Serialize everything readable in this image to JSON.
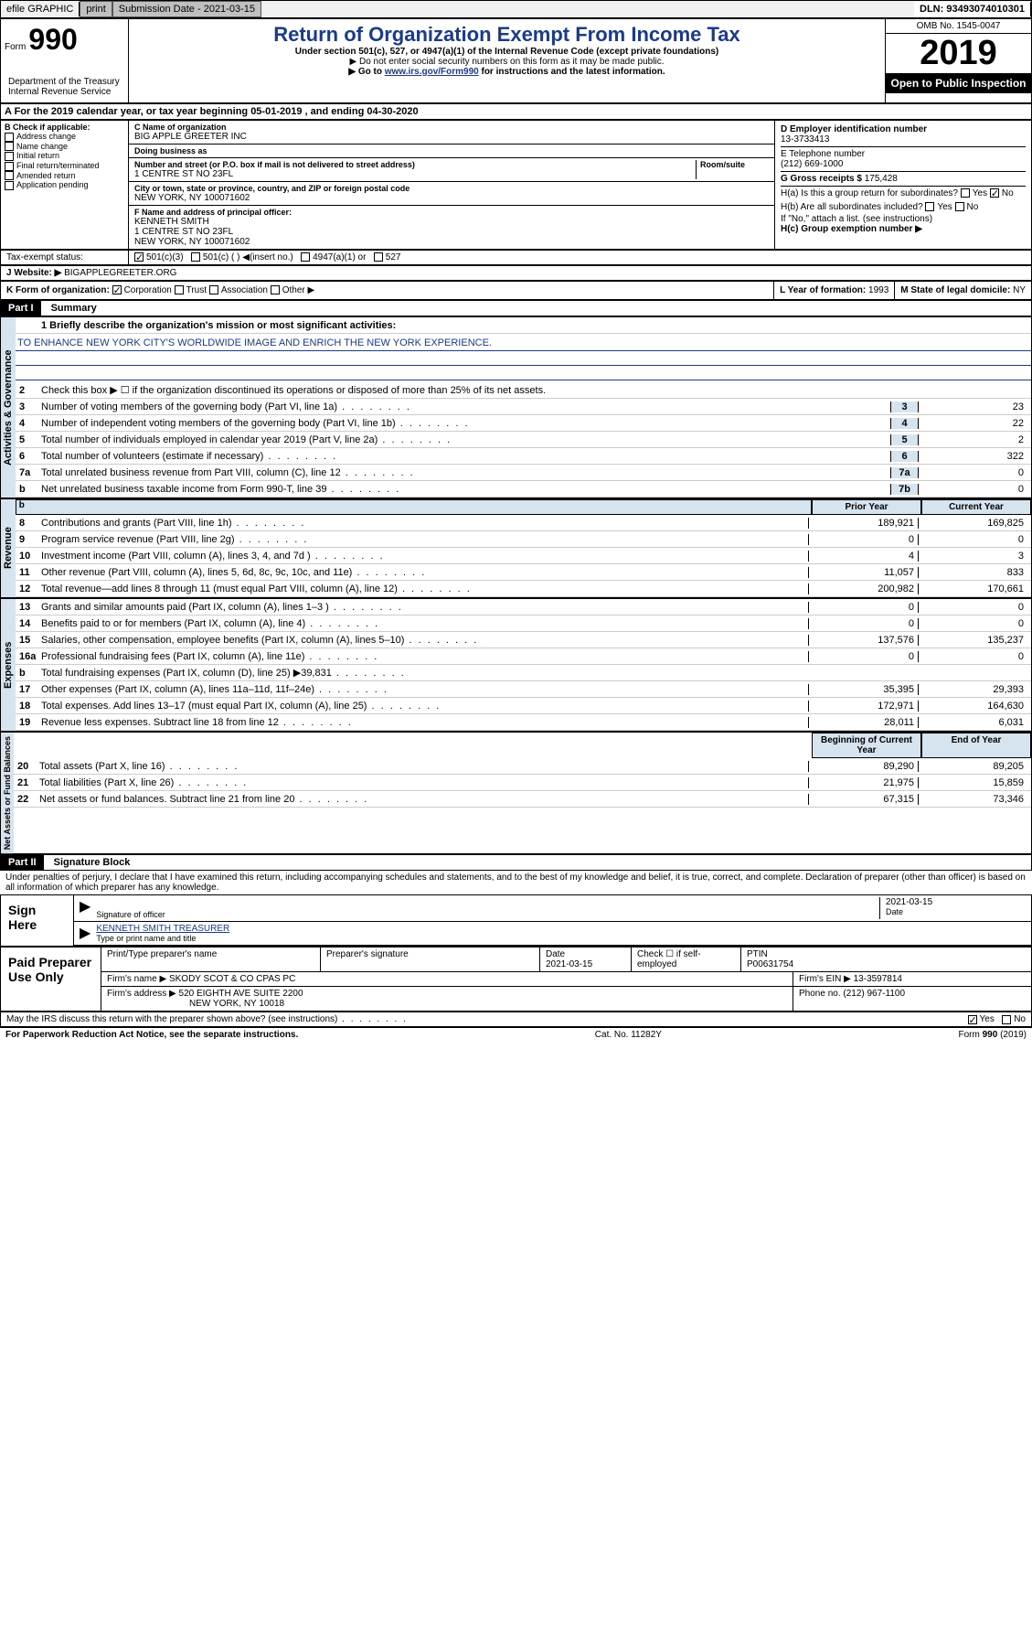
{
  "topbar": {
    "efile": "efile GRAPHIC",
    "print": "print",
    "subdate_label": "Submission Date - ",
    "subdate": "2021-03-15",
    "dln": "DLN: 93493074010301"
  },
  "header": {
    "form_label": "Form",
    "form_num": "990",
    "title": "Return of Organization Exempt From Income Tax",
    "subtitle": "Under section 501(c), 527, or 4947(a)(1) of the Internal Revenue Code (except private foundations)",
    "note1": "▶ Do not enter social security numbers on this form as it may be made public.",
    "note2_pre": "▶ Go to ",
    "note2_link": "www.irs.gov/Form990",
    "note2_post": " for instructions and the latest information.",
    "omb": "OMB No. 1545-0047",
    "year": "2019",
    "open": "Open to Public Inspection",
    "dept": "Department of the Treasury Internal Revenue Service"
  },
  "sectionA": {
    "text": "A For the 2019 calendar year, or tax year beginning 05-01-2019   , and ending 04-30-2020"
  },
  "colB": {
    "label": "B Check if applicable:",
    "items": [
      "Address change",
      "Name change",
      "Initial return",
      "Final return/terminated",
      "Amended return",
      "Application pending"
    ]
  },
  "colC": {
    "name_label": "C Name of organization",
    "name": "BIG APPLE GREETER INC",
    "dba_label": "Doing business as",
    "dba": "",
    "addr_label": "Number and street (or P.O. box if mail is not delivered to street address)",
    "addr": "1 CENTRE ST NO 23FL",
    "room_label": "Room/suite",
    "city_label": "City or town, state or province, country, and ZIP or foreign postal code",
    "city": "NEW YORK, NY  100071602",
    "officer_label": "F Name and address of principal officer:",
    "officer_name": "KENNETH SMITH",
    "officer_addr1": "1 CENTRE ST NO 23FL",
    "officer_addr2": "NEW YORK, NY 100071602"
  },
  "colD": {
    "ein_label": "D Employer identification number",
    "ein": "13-3733413",
    "phone_label": "E Telephone number",
    "phone": "(212) 669-1000",
    "gross_label": "G Gross receipts $ ",
    "gross": "175,428",
    "ha_label": "H(a)  Is this a group return for subordinates?",
    "hb_label": "H(b)  Are all subordinates included?",
    "h_note": "If \"No,\" attach a list. (see instructions)",
    "hc_label": "H(c)  Group exemption number ▶"
  },
  "taxStatus": {
    "label": "Tax-exempt status:",
    "opt1": "501(c)(3)",
    "opt2": "501(c) (  ) ◀(insert no.)",
    "opt3": "4947(a)(1) or",
    "opt4": "527"
  },
  "website": {
    "label": "J   Website: ▶",
    "value": "BIGAPPLEGREETER.ORG"
  },
  "rowK": {
    "k": "K Form of organization:",
    "corp": "Corporation",
    "trust": "Trust",
    "assoc": "Association",
    "other": "Other ▶",
    "l": "L Year of formation: ",
    "l_val": "1993",
    "m": "M State of legal domicile: ",
    "m_val": "NY"
  },
  "partI": {
    "header": "Part I",
    "title": "Summary"
  },
  "governance": {
    "label": "Activities & Governance",
    "line1_label": "1  Briefly describe the organization's mission or most significant activities:",
    "mission": "TO ENHANCE NEW YORK CITY'S WORLDWIDE IMAGE AND ENRICH THE NEW YORK EXPERIENCE.",
    "line2": "Check this box ▶ ☐  if the organization discontinued its operations or disposed of more than 25% of its net assets.",
    "lines": [
      {
        "n": "3",
        "d": "Number of voting members of the governing body (Part VI, line 1a)",
        "box": "3",
        "v": "23"
      },
      {
        "n": "4",
        "d": "Number of independent voting members of the governing body (Part VI, line 1b)",
        "box": "4",
        "v": "22"
      },
      {
        "n": "5",
        "d": "Total number of individuals employed in calendar year 2019 (Part V, line 2a)",
        "box": "5",
        "v": "2"
      },
      {
        "n": "6",
        "d": "Total number of volunteers (estimate if necessary)",
        "box": "6",
        "v": "322"
      },
      {
        "n": "7a",
        "d": "Total unrelated business revenue from Part VIII, column (C), line 12",
        "box": "7a",
        "v": "0"
      },
      {
        "n": "b",
        "d": "Net unrelated business taxable income from Form 990-T, line 39",
        "box": "7b",
        "v": "0"
      }
    ]
  },
  "revenue": {
    "label": "Revenue",
    "prior_h": "Prior Year",
    "curr_h": "Current Year",
    "lines": [
      {
        "n": "8",
        "d": "Contributions and grants (Part VIII, line 1h)",
        "p": "189,921",
        "c": "169,825"
      },
      {
        "n": "9",
        "d": "Program service revenue (Part VIII, line 2g)",
        "p": "0",
        "c": "0"
      },
      {
        "n": "10",
        "d": "Investment income (Part VIII, column (A), lines 3, 4, and 7d )",
        "p": "4",
        "c": "3"
      },
      {
        "n": "11",
        "d": "Other revenue (Part VIII, column (A), lines 5, 6d, 8c, 9c, 10c, and 11e)",
        "p": "11,057",
        "c": "833"
      },
      {
        "n": "12",
        "d": "Total revenue—add lines 8 through 11 (must equal Part VIII, column (A), line 12)",
        "p": "200,982",
        "c": "170,661"
      }
    ]
  },
  "expenses": {
    "label": "Expenses",
    "lines": [
      {
        "n": "13",
        "d": "Grants and similar amounts paid (Part IX, column (A), lines 1–3 )",
        "p": "0",
        "c": "0"
      },
      {
        "n": "14",
        "d": "Benefits paid to or for members (Part IX, column (A), line 4)",
        "p": "0",
        "c": "0"
      },
      {
        "n": "15",
        "d": "Salaries, other compensation, employee benefits (Part IX, column (A), lines 5–10)",
        "p": "137,576",
        "c": "135,237"
      },
      {
        "n": "16a",
        "d": "Professional fundraising fees (Part IX, column (A), line 11e)",
        "p": "0",
        "c": "0"
      },
      {
        "n": "b",
        "d": "Total fundraising expenses (Part IX, column (D), line 25) ▶39,831",
        "p": "",
        "c": ""
      },
      {
        "n": "17",
        "d": "Other expenses (Part IX, column (A), lines 11a–11d, 11f–24e)",
        "p": "35,395",
        "c": "29,393"
      },
      {
        "n": "18",
        "d": "Total expenses. Add lines 13–17 (must equal Part IX, column (A), line 25)",
        "p": "172,971",
        "c": "164,630"
      },
      {
        "n": "19",
        "d": "Revenue less expenses. Subtract line 18 from line 12",
        "p": "28,011",
        "c": "6,031"
      }
    ]
  },
  "netassets": {
    "label": "Net Assets or Fund Balances",
    "begin_h": "Beginning of Current Year",
    "end_h": "End of Year",
    "lines": [
      {
        "n": "20",
        "d": "Total assets (Part X, line 16)",
        "p": "89,290",
        "c": "89,205"
      },
      {
        "n": "21",
        "d": "Total liabilities (Part X, line 26)",
        "p": "21,975",
        "c": "15,859"
      },
      {
        "n": "22",
        "d": "Net assets or fund balances. Subtract line 21 from line 20",
        "p": "67,315",
        "c": "73,346"
      }
    ]
  },
  "partII": {
    "header": "Part II",
    "title": "Signature Block",
    "declaration": "Under penalties of perjury, I declare that I have examined this return, including accompanying schedules and statements, and to the best of my knowledge and belief, it is true, correct, and complete. Declaration of preparer (other than officer) is based on all information of which preparer has any knowledge."
  },
  "sign": {
    "label": "Sign Here",
    "sig_label": "Signature of officer",
    "date": "2021-03-15",
    "date_label": "Date",
    "name": "KENNETH SMITH  TREASURER",
    "name_label": "Type or print name and title"
  },
  "paid": {
    "label": "Paid Preparer Use Only",
    "h1": "Print/Type preparer's name",
    "h2": "Preparer's signature",
    "h3": "Date",
    "h3v": "2021-03-15",
    "h4": "Check ☐ if self-employed",
    "h5": "PTIN",
    "h5v": "P00631754",
    "firm_label": "Firm's name    ▶",
    "firm": "SKODY SCOT & CO CPAS PC",
    "ein_label": "Firm's EIN ▶",
    "ein": "13-3597814",
    "addr_label": "Firm's address ▶",
    "addr1": "520 EIGHTH AVE SUITE 2200",
    "addr2": "NEW YORK, NY  10018",
    "phone_label": "Phone no. ",
    "phone": "(212) 967-1100"
  },
  "discuss": {
    "text": "May the IRS discuss this return with the preparer shown above? (see instructions)",
    "yes": "Yes",
    "no": "No"
  },
  "footer": {
    "pra": "For Paperwork Reduction Act Notice, see the separate instructions.",
    "cat": "Cat. No. 11282Y",
    "form": "Form 990 (2019)"
  }
}
